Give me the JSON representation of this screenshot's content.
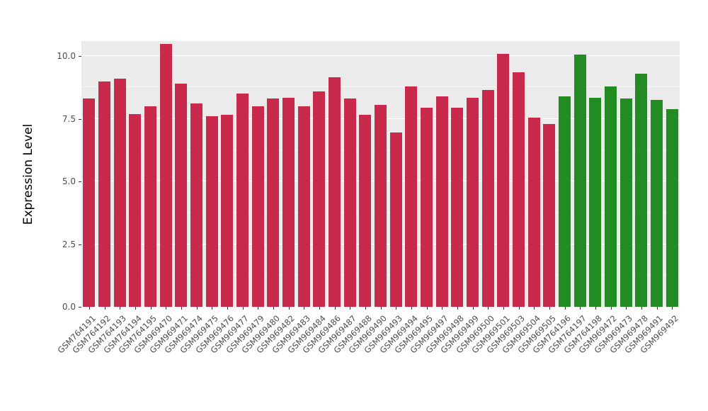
{
  "chart_data": {
    "type": "bar",
    "title": "",
    "xlabel": "",
    "ylabel": "Expression Level",
    "ylim": [
      0,
      10.6
    ],
    "yticks": [
      {
        "value": 0,
        "label": "0.0"
      },
      {
        "value": 2.5,
        "label": "2.5"
      },
      {
        "value": 5,
        "label": "5.0"
      },
      {
        "value": 7.5,
        "label": "7.5"
      },
      {
        "value": 10,
        "label": "10.0"
      }
    ],
    "yticks_minor": [
      1.25,
      3.75,
      6.25,
      8.75
    ],
    "grid": true,
    "legend_position": "none",
    "panel_background": "#EBEBEB",
    "gridline_color": "#FFFFFF",
    "group_colors": {
      "group1_red": "#C9294B",
      "group2_green": "#228B22"
    },
    "bars": [
      {
        "label": "GSM764191",
        "value": 8.3,
        "color": "#C9294B"
      },
      {
        "label": "GSM764192",
        "value": 9.0,
        "color": "#C9294B"
      },
      {
        "label": "GSM764193",
        "value": 9.1,
        "color": "#C9294B"
      },
      {
        "label": "GSM764194",
        "value": 7.7,
        "color": "#C9294B"
      },
      {
        "label": "GSM764195",
        "value": 8.0,
        "color": "#C9294B"
      },
      {
        "label": "GSM969470",
        "value": 10.5,
        "color": "#C9294B"
      },
      {
        "label": "GSM969471",
        "value": 8.9,
        "color": "#C9294B"
      },
      {
        "label": "GSM969474",
        "value": 8.1,
        "color": "#C9294B"
      },
      {
        "label": "GSM969475",
        "value": 7.6,
        "color": "#C9294B"
      },
      {
        "label": "GSM969476",
        "value": 7.65,
        "color": "#C9294B"
      },
      {
        "label": "GSM969477",
        "value": 8.5,
        "color": "#C9294B"
      },
      {
        "label": "GSM969479",
        "value": 8.0,
        "color": "#C9294B"
      },
      {
        "label": "GSM969480",
        "value": 8.3,
        "color": "#C9294B"
      },
      {
        "label": "GSM969482",
        "value": 8.35,
        "color": "#C9294B"
      },
      {
        "label": "GSM969483",
        "value": 8.0,
        "color": "#C9294B"
      },
      {
        "label": "GSM969484",
        "value": 8.6,
        "color": "#C9294B"
      },
      {
        "label": "GSM969486",
        "value": 9.15,
        "color": "#C9294B"
      },
      {
        "label": "GSM969487",
        "value": 8.3,
        "color": "#C9294B"
      },
      {
        "label": "GSM969488",
        "value": 7.65,
        "color": "#C9294B"
      },
      {
        "label": "GSM969490",
        "value": 8.05,
        "color": "#C9294B"
      },
      {
        "label": "GSM969493",
        "value": 6.95,
        "color": "#C9294B"
      },
      {
        "label": "GSM969494",
        "value": 8.8,
        "color": "#C9294B"
      },
      {
        "label": "GSM969495",
        "value": 7.95,
        "color": "#C9294B"
      },
      {
        "label": "GSM969497",
        "value": 8.4,
        "color": "#C9294B"
      },
      {
        "label": "GSM969498",
        "value": 7.95,
        "color": "#C9294B"
      },
      {
        "label": "GSM969499",
        "value": 8.35,
        "color": "#C9294B"
      },
      {
        "label": "GSM969500",
        "value": 8.65,
        "color": "#C9294B"
      },
      {
        "label": "GSM969501",
        "value": 10.1,
        "color": "#C9294B"
      },
      {
        "label": "GSM969503",
        "value": 9.35,
        "color": "#C9294B"
      },
      {
        "label": "GSM969504",
        "value": 7.55,
        "color": "#C9294B"
      },
      {
        "label": "GSM969505",
        "value": 7.3,
        "color": "#C9294B"
      },
      {
        "label": "GSM764196",
        "value": 8.4,
        "color": "#228B22"
      },
      {
        "label": "GSM764197",
        "value": 10.05,
        "color": "#228B22"
      },
      {
        "label": "GSM764198",
        "value": 8.35,
        "color": "#228B22"
      },
      {
        "label": "GSM969472",
        "value": 8.8,
        "color": "#228B22"
      },
      {
        "label": "GSM969473",
        "value": 8.3,
        "color": "#228B22"
      },
      {
        "label": "GSM969478",
        "value": 9.3,
        "color": "#228B22"
      },
      {
        "label": "GSM969491",
        "value": 8.25,
        "color": "#228B22"
      },
      {
        "label": "GSM969492",
        "value": 7.9,
        "color": "#228B22"
      }
    ]
  }
}
